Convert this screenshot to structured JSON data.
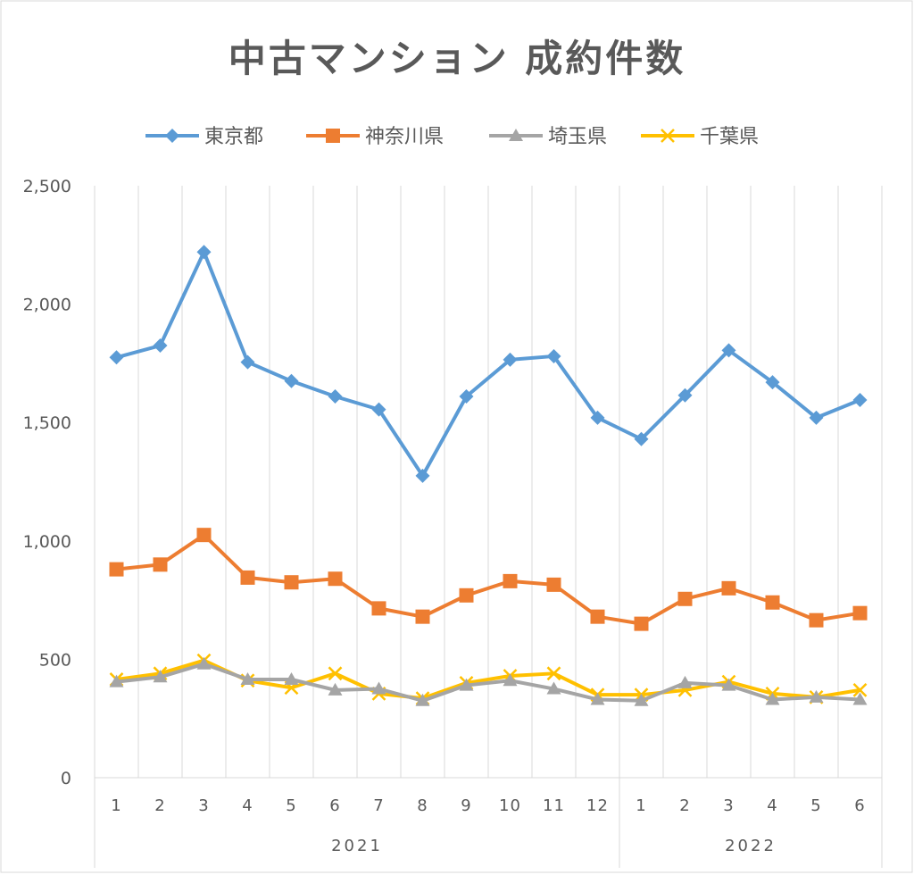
{
  "chart_data": {
    "type": "line",
    "title": "中古マンション 成約件数",
    "xlabel": "",
    "ylabel": "",
    "ylim": [
      0,
      2500
    ],
    "yticks": [
      0,
      500,
      1000,
      1500,
      2000,
      2500
    ],
    "ytick_labels": [
      "0",
      "500",
      "1,000",
      "1,500",
      "2,000",
      "2,500"
    ],
    "categories": [
      "1",
      "2",
      "3",
      "4",
      "5",
      "6",
      "7",
      "8",
      "9",
      "10",
      "11",
      "12",
      "1",
      "2",
      "3",
      "4",
      "5",
      "6"
    ],
    "groups": [
      {
        "label": "2021",
        "start": 0,
        "count": 12
      },
      {
        "label": "2022",
        "start": 12,
        "count": 6
      }
    ],
    "grid": "vertical",
    "legend": "top",
    "series": [
      {
        "name": "東京都",
        "color": "#5B9BD5",
        "marker": "diamond",
        "values": [
          1775,
          1825,
          2220,
          1755,
          1675,
          1610,
          1555,
          1275,
          1610,
          1765,
          1780,
          1520,
          1430,
          1615,
          1805,
          1670,
          1520,
          1595
        ]
      },
      {
        "name": "神奈川県",
        "color": "#ED7D31",
        "marker": "square",
        "values": [
          880,
          900,
          1025,
          845,
          825,
          840,
          715,
          680,
          770,
          830,
          815,
          680,
          650,
          755,
          800,
          740,
          665,
          695
        ]
      },
      {
        "name": "埼玉県",
        "color": "#A5A5A5",
        "marker": "triangle",
        "values": [
          405,
          425,
          480,
          415,
          415,
          370,
          375,
          325,
          390,
          410,
          375,
          330,
          325,
          400,
          390,
          330,
          340,
          330
        ]
      },
      {
        "name": "千葉県",
        "color": "#FFC000",
        "marker": "x",
        "values": [
          415,
          440,
          495,
          410,
          380,
          440,
          355,
          335,
          400,
          430,
          440,
          350,
          350,
          370,
          405,
          355,
          340,
          370
        ]
      }
    ]
  }
}
